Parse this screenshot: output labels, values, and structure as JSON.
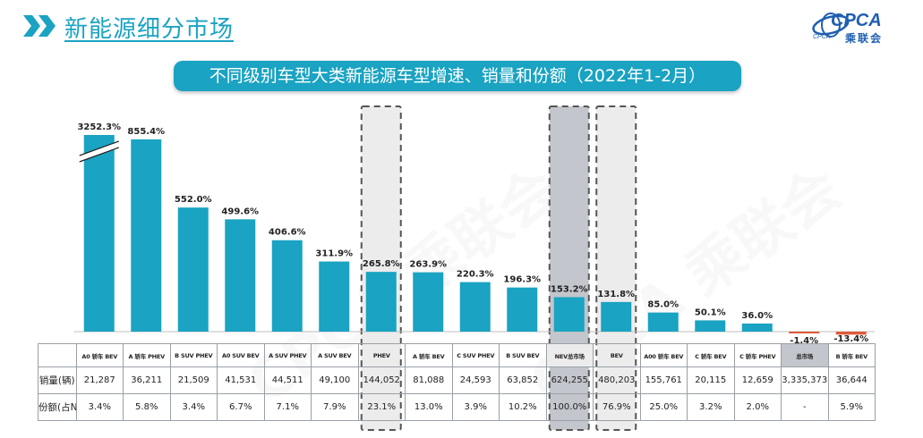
{
  "header": {
    "title": "新能源细分市场"
  },
  "logo": {
    "text": "CPCA",
    "subtext": "乘联会",
    "tag": "CPCA"
  },
  "banner": {
    "title": "不同级别车型大类新能源车型增速、销量和份额（2022年1-2月）"
  },
  "watermark": "CPCA 乘联会",
  "colors": {
    "bar": "#1aa3c2",
    "negative_bar": "#e05a38",
    "highlight_dark": "#c3c6cc",
    "highlight_light": "#ececec",
    "banner": "#1aa3c2"
  },
  "chart_data": {
    "type": "bar",
    "title": "不同级别车型大类新能源车型增速、销量和份额（2022年1-2月）",
    "categories": [
      "A0 轿车 BEV",
      "A 轿车 PHEV",
      "B SUV PHEV",
      "A0 SUV BEV",
      "A SUV PHEV",
      "A SUV BEV",
      "PHEV",
      "A 轿车 BEV",
      "C SUV PHEV",
      "B SUV BEV",
      "NEV总市场",
      "BEV",
      "A00 轿车 BEV",
      "C 轿车 BEV",
      "C 轿车 PHEV",
      "总市场",
      "B 轿车 BEV"
    ],
    "series": [
      {
        "values": [
          3252.3,
          855.4,
          552.0,
          499.6,
          406.6,
          311.9,
          265.8,
          263.9,
          220.3,
          196.3,
          153.2,
          131.8,
          85.0,
          50.1,
          36.0,
          -1.4,
          -13.4
        ]
      }
    ],
    "value_labels": [
      "3252.3%",
      "855.4%",
      "552.0%",
      "499.6%",
      "406.6%",
      "311.9%",
      "265.8%",
      "263.9%",
      "220.3%",
      "196.3%",
      "153.2%",
      "131.8%",
      "85.0%",
      "50.1%",
      "36.0%",
      "-1.4%",
      "-13.4%"
    ],
    "axis_break": true,
    "highlighted_categories": [
      "PHEV",
      "NEV总市场",
      "BEV",
      "总市场"
    ],
    "grid": false,
    "table": {
      "row_labels": [
        "销量(辆)",
        "份额(占NEV)"
      ],
      "sales": [
        "21,287",
        "36,211",
        "21,509",
        "41,531",
        "44,511",
        "49,100",
        "144,052",
        "81,088",
        "24,593",
        "63,852",
        "624,255",
        "480,203",
        "155,761",
        "20,115",
        "12,659",
        "3,335,373",
        "36,644"
      ],
      "share": [
        "3.4%",
        "5.8%",
        "3.4%",
        "6.7%",
        "7.1%",
        "7.9%",
        "23.1%",
        "13.0%",
        "3.9%",
        "10.2%",
        "100.0%",
        "76.9%",
        "25.0%",
        "3.2%",
        "2.0%",
        "-",
        "5.9%"
      ]
    }
  }
}
